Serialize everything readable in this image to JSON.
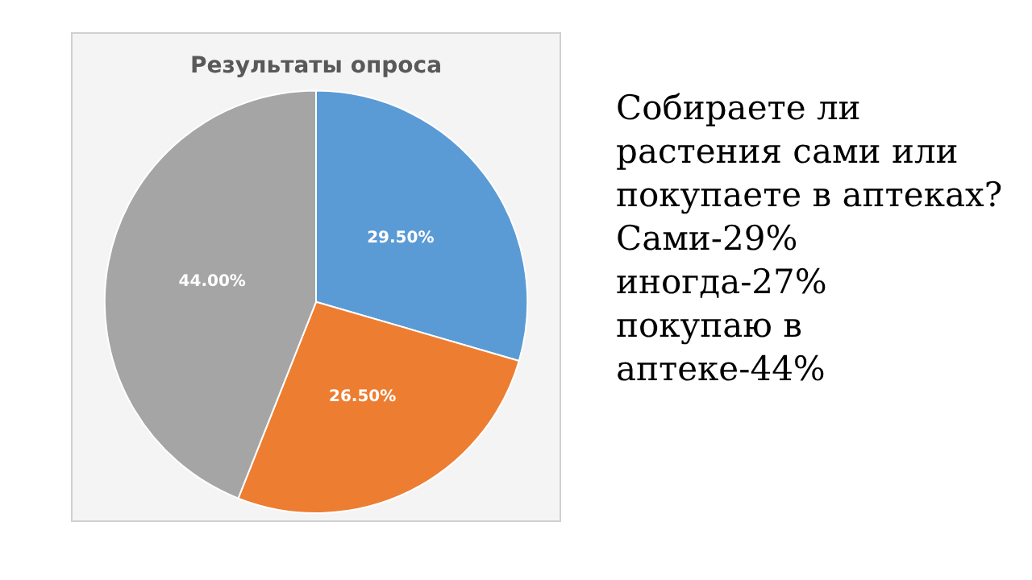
{
  "chart_data": {
    "type": "pie",
    "title": "Результаты опроса",
    "categories": [
      null,
      null,
      null
    ],
    "values": [
      29.5,
      26.5,
      44
    ],
    "colors": [
      "#5b9bd5",
      "#ed7d31",
      "#a5a5a5"
    ],
    "value_labels": [
      "29.50%",
      "26.50%",
      "44.00%"
    ],
    "annotations": [
      "Собираете ли растения сами или покупаете в аптеках?\nСами-29%\nиногда-27%\nпокупаю в аптеке-44%"
    ]
  }
}
